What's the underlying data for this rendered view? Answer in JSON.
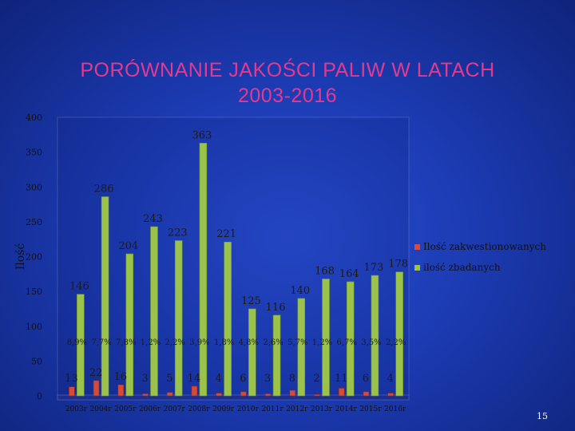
{
  "slide": {
    "title_line1": "PORÓWNANIE JAKOŚCI PALIW W LATACH",
    "title_line2": "2003-2016",
    "slide_number": "15"
  },
  "colors": {
    "title": "#e23a8f",
    "series_rejected": "#d64a3a",
    "series_tested": "#9bc24a",
    "label_text": "#1b1b1b",
    "background": "#1c3bb3"
  },
  "chart_data": {
    "type": "bar",
    "title": "",
    "xlabel": "",
    "ylabel": "Ilość",
    "ylim": [
      0,
      400
    ],
    "yticks": [
      0,
      50,
      100,
      150,
      200,
      250,
      300,
      350,
      400
    ],
    "grid": false,
    "legend_position": "right",
    "categories": [
      "2003r",
      "2004r",
      "2005r",
      "2006r",
      "2007r",
      "2008r",
      "2009r",
      "2010r",
      "2011r",
      "2012r",
      "2013r",
      "2014r",
      "2015r",
      "2016r"
    ],
    "series": [
      {
        "name": "Ilość zakwestionowanych",
        "values": [
          13,
          22,
          16,
          3,
          5,
          14,
          4,
          6,
          3,
          8,
          2,
          11,
          6,
          4
        ]
      },
      {
        "name": "ilość zbadanych",
        "values": [
          146,
          286,
          204,
          243,
          223,
          363,
          221,
          125,
          116,
          140,
          168,
          164,
          173,
          178
        ]
      }
    ],
    "percentages": [
      "8,9%",
      "7,7%",
      "7,8%",
      "1,2%",
      "2,2%",
      "3,9%",
      "1,8%",
      "4,8%",
      "2,6%",
      "5,7%",
      "1,2%",
      "6,7%",
      "3,5%",
      "2,2%"
    ]
  }
}
